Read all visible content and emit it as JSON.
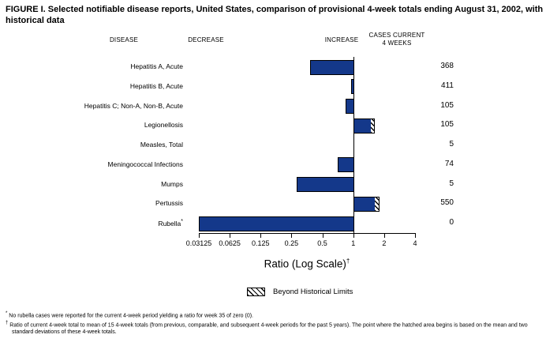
{
  "figure": {
    "title": "FIGURE I. Selected notifiable disease reports, United States, comparison of provisional 4-week totals ending August 31, 2002, with historical data"
  },
  "columns": {
    "disease": "DISEASE",
    "decrease": "DECREASE",
    "increase": "INCREASE",
    "cases_line1": "CASES CURRENT",
    "cases_line2": "4 WEEKS"
  },
  "chart_data": {
    "type": "bar",
    "orientation": "horizontal",
    "scale": "log2",
    "baseline_ratio": 1,
    "axis": {
      "label": "Ratio (Log Scale)",
      "label_superscript": "†",
      "min": 0.03125,
      "max": 4,
      "ticks": [
        0.03125,
        0.0625,
        0.125,
        0.25,
        0.5,
        1,
        2,
        4
      ],
      "tick_labels": [
        "0.03125",
        "0.0625",
        "0.125",
        "0.25",
        "0.5",
        "1",
        "2",
        "4"
      ]
    },
    "rows": [
      {
        "disease": "Hepatitis A, Acute",
        "ratio": 0.38,
        "hatch_from": null,
        "cases": "368"
      },
      {
        "disease": "Hepatitis B, Acute",
        "ratio": 0.95,
        "hatch_from": null,
        "cases": "411"
      },
      {
        "disease": "Hepatitis C; Non-A, Non-B, Acute",
        "ratio": 0.84,
        "hatch_from": null,
        "cases": "105"
      },
      {
        "disease": "Legionellosis",
        "ratio": 1.6,
        "hatch_from": 1.48,
        "cases": "105"
      },
      {
        "disease": "Measles, Total",
        "ratio": null,
        "hatch_from": null,
        "cases": "5"
      },
      {
        "disease": "Meningococcal Infections",
        "ratio": 0.71,
        "hatch_from": null,
        "cases": "74"
      },
      {
        "disease": "Mumps",
        "ratio": 0.28,
        "hatch_from": null,
        "cases": "5"
      },
      {
        "disease": "Pertussis",
        "ratio": 1.77,
        "hatch_from": 1.62,
        "cases": "550"
      },
      {
        "disease": "Rubella",
        "superscript": "*",
        "ratio": 0,
        "hatch_from": null,
        "cases": "0"
      }
    ],
    "legend": {
      "label": "Beyond Historical Limits"
    },
    "colors": {
      "bar": "#14388a",
      "bar_border": "#000000"
    }
  },
  "footnotes": [
    {
      "marker": "*",
      "text": "No rubella cases were reported for the current 4-week period yielding a ratio for week 35 of zero (0)."
    },
    {
      "marker": "†",
      "text": "Ratio of current 4-week total to mean of 15 4-week totals (from previous, comparable, and subsequent 4-week periods for the past 5 years). The point where the hatched area begins is based on the mean and two standard deviations of these 4-week totals."
    }
  ]
}
